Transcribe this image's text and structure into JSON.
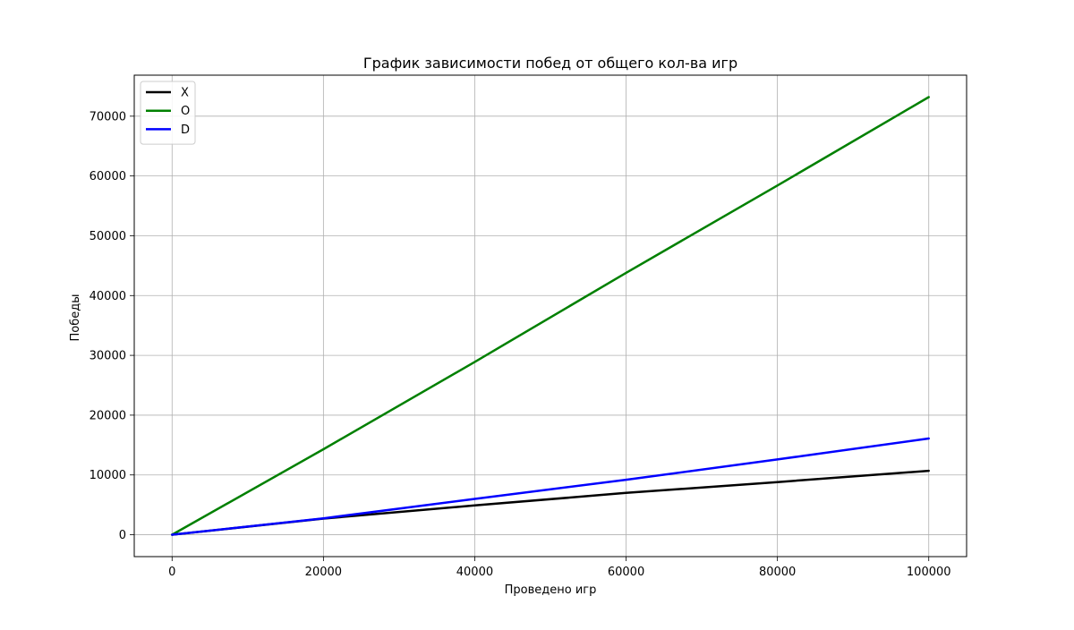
{
  "chart_data": {
    "type": "line",
    "title": "График зависимости побед от общего кол-ва игр",
    "xlabel": "Проведено игр",
    "ylabel": "Победы",
    "xlim": [
      -5000,
      105000
    ],
    "ylim": [
      -3660,
      76860
    ],
    "x_ticks": [
      0,
      20000,
      40000,
      60000,
      80000,
      100000
    ],
    "y_ticks": [
      0,
      10000,
      20000,
      30000,
      40000,
      50000,
      60000,
      70000
    ],
    "grid": true,
    "legend_position": "upper left",
    "series": [
      {
        "name": "X",
        "color": "#000000",
        "x": [
          0,
          20000,
          40000,
          60000,
          80000,
          100000
        ],
        "y": [
          0,
          2700,
          4900,
          7000,
          8800,
          10700
        ]
      },
      {
        "name": "O",
        "color": "#008000",
        "x": [
          0,
          20000,
          40000,
          60000,
          80000,
          100000
        ],
        "y": [
          0,
          14300,
          28900,
          43800,
          58400,
          73200
        ]
      },
      {
        "name": "D",
        "color": "#0000ff",
        "x": [
          0,
          20000,
          40000,
          60000,
          80000,
          100000
        ],
        "y": [
          0,
          2750,
          6000,
          9200,
          12600,
          16100
        ]
      }
    ]
  }
}
